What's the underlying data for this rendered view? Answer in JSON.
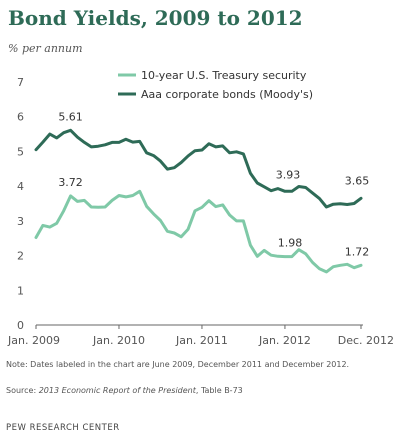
{
  "title": "Bond Yields, 2009 to 2012",
  "unit_label": "% per annum",
  "chart_data": {
    "type": "line",
    "title": "Bond Yields, 2009 to 2012",
    "ylabel": "% per annum",
    "xlabel": "",
    "ylim": [
      0,
      7
    ],
    "yticks": [
      "0",
      "1",
      "2",
      "3",
      "4",
      "5",
      "6",
      "7"
    ],
    "xticks": [
      "Jan. 2009",
      "Jan. 2010",
      "Jan. 2011",
      "Jan. 2012",
      "Dec. 2012"
    ],
    "grid": false,
    "legend_position": "top-right",
    "x": [
      "2009-01",
      "2009-02",
      "2009-03",
      "2009-04",
      "2009-05",
      "2009-06",
      "2009-07",
      "2009-08",
      "2009-09",
      "2009-10",
      "2009-11",
      "2009-12",
      "2010-01",
      "2010-02",
      "2010-03",
      "2010-04",
      "2010-05",
      "2010-06",
      "2010-07",
      "2010-08",
      "2010-09",
      "2010-10",
      "2010-11",
      "2010-12",
      "2011-01",
      "2011-02",
      "2011-03",
      "2011-04",
      "2011-05",
      "2011-06",
      "2011-07",
      "2011-08",
      "2011-09",
      "2011-10",
      "2011-11",
      "2011-12",
      "2012-01",
      "2012-02",
      "2012-03",
      "2012-04",
      "2012-05",
      "2012-06",
      "2012-07",
      "2012-08",
      "2012-09",
      "2012-10",
      "2012-11",
      "2012-12"
    ],
    "series": [
      {
        "name": "10-year U.S. Treasury security",
        "color": "#7fc9a7",
        "values": [
          2.52,
          2.87,
          2.82,
          2.93,
          3.29,
          3.72,
          3.56,
          3.59,
          3.4,
          3.39,
          3.4,
          3.59,
          3.73,
          3.69,
          3.73,
          3.85,
          3.42,
          3.2,
          3.01,
          2.7,
          2.65,
          2.54,
          2.76,
          3.29,
          3.39,
          3.58,
          3.41,
          3.46,
          3.17,
          3.0,
          3.0,
          2.3,
          1.98,
          2.15,
          2.01,
          1.98,
          1.97,
          1.97,
          2.17,
          2.05,
          1.8,
          1.62,
          1.53,
          1.68,
          1.72,
          1.75,
          1.65,
          1.72
        ]
      },
      {
        "name": "Aaa corporate bonds  (Moody's)",
        "color": "#2e6b57",
        "values": [
          5.05,
          5.27,
          5.5,
          5.39,
          5.54,
          5.61,
          5.41,
          5.26,
          5.13,
          5.15,
          5.19,
          5.26,
          5.26,
          5.35,
          5.27,
          5.29,
          4.96,
          4.88,
          4.72,
          4.49,
          4.53,
          4.68,
          4.87,
          5.02,
          5.04,
          5.22,
          5.13,
          5.16,
          4.96,
          4.99,
          4.93,
          4.37,
          4.09,
          3.98,
          3.87,
          3.93,
          3.85,
          3.85,
          3.99,
          3.96,
          3.8,
          3.64,
          3.4,
          3.48,
          3.49,
          3.47,
          3.5,
          3.65
        ]
      }
    ],
    "annotations": [
      {
        "series": 1,
        "x": "2009-06",
        "label": "5.61"
      },
      {
        "series": 0,
        "x": "2009-06",
        "label": "3.72"
      },
      {
        "series": 1,
        "x": "2011-12",
        "label": "3.93"
      },
      {
        "series": 0,
        "x": "2011-12",
        "label": "1.98"
      },
      {
        "series": 1,
        "x": "2012-12",
        "label": "3.65"
      },
      {
        "series": 0,
        "x": "2012-12",
        "label": "1.72"
      }
    ]
  },
  "note": "Note: Dates labeled in the chart are June 2009, December 2011 and December 2012.",
  "source_prefix": "Source: ",
  "source_title": "2013 Economic Report of the President",
  "source_suffix": ", Table B-73",
  "org": "PEW RESEARCH CENTER"
}
